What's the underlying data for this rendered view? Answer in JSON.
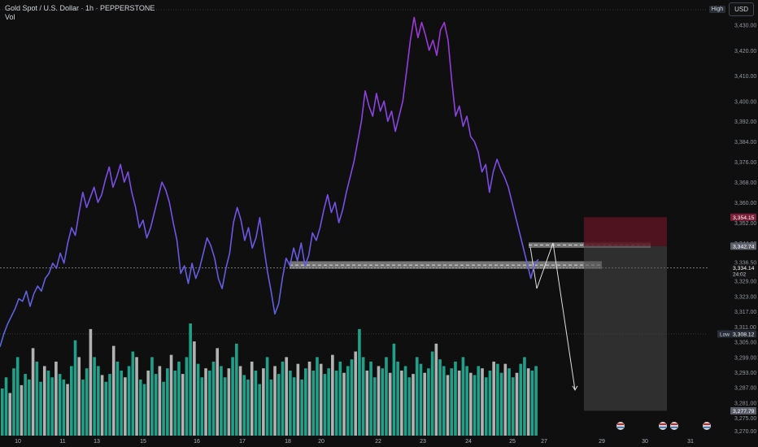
{
  "header": {
    "symbol_line": "Gold Spot / U.S. Dollar · 1h · PEPPERSTONE",
    "indicator": "Vol",
    "high_badge": "High",
    "currency_button": "USD",
    "low_badge": "Low"
  },
  "chart_data": {
    "type": "line",
    "title": "Gold Spot / U.S. Dollar · 1h · PEPPERSTONE",
    "xlabel": "",
    "ylabel": "",
    "ylim": [
      3268,
      3436
    ],
    "y_ticks": [
      3270.0,
      3275.0,
      3281.0,
      3287.0,
      3293.0,
      3299.0,
      3305.0,
      3311.0,
      3317.0,
      3323.0,
      3329.0,
      3336.5,
      3344.0,
      3352.0,
      3360.0,
      3368.0,
      3376.0,
      3384.0,
      3392.0,
      3400.0,
      3410.0,
      3420.0,
      3430.0
    ],
    "x_ticks": [
      "10",
      "11",
      "13",
      "15",
      "16",
      "17",
      "18",
      "20",
      "22",
      "23",
      "24",
      "25",
      "27",
      "29",
      "30",
      "31"
    ],
    "price_labels": [
      {
        "label": "3,354.15",
        "value": 3354.15,
        "color": "#7b1f3a"
      },
      {
        "label": "3,342.74",
        "value": 3342.74,
        "color": "#5d606b"
      },
      {
        "label": "3,334.14",
        "sub": "24:02",
        "value": 3334.14,
        "color": "#131313"
      },
      {
        "label": "3,308.12",
        "value": 3308.12,
        "color": "#2a2e39"
      },
      {
        "label": "3,277.79",
        "value": 3277.79,
        "color": "#5d606b"
      }
    ],
    "series": [
      {
        "values": [
          3303,
          3308,
          3312,
          3315,
          3318,
          3322,
          3321,
          3325,
          3319,
          3324,
          3327,
          3325,
          3330,
          3332,
          3336,
          3334,
          3340,
          3336,
          3344,
          3350,
          3347,
          3356,
          3364,
          3358,
          3362,
          3366,
          3360,
          3363,
          3369,
          3374,
          3366,
          3370,
          3375,
          3368,
          3372,
          3364,
          3358,
          3350,
          3353,
          3346,
          3350,
          3356,
          3362,
          3368,
          3365,
          3360,
          3352,
          3345,
          3332,
          3335,
          3328,
          3336,
          3330,
          3334,
          3340,
          3346,
          3343,
          3338,
          3330,
          3326,
          3334,
          3340,
          3352,
          3358,
          3353,
          3345,
          3350,
          3342,
          3346,
          3354,
          3343,
          3333,
          3325,
          3316,
          3320,
          3330,
          3338,
          3335,
          3342,
          3337,
          3344,
          3335,
          3339,
          3348,
          3345,
          3350,
          3357,
          3363,
          3356,
          3360,
          3352,
          3357,
          3364,
          3370,
          3376,
          3384,
          3392,
          3404,
          3398,
          3394,
          3403,
          3396,
          3400,
          3392,
          3396,
          3388,
          3394,
          3400,
          3412,
          3424,
          3433,
          3425,
          3431,
          3426,
          3420,
          3424,
          3418,
          3428,
          3431,
          3424,
          3408,
          3394,
          3398,
          3390,
          3394,
          3386,
          3384,
          3380,
          3372,
          3375,
          3364,
          3372,
          3377,
          3373,
          3370,
          3366,
          3360,
          3354,
          3348,
          3342,
          3336,
          3330,
          3336,
          3337.5
        ]
      }
    ],
    "volume": [
      42,
      52,
      38,
      60,
      70,
      45,
      55,
      50,
      78,
      66,
      48,
      62,
      58,
      52,
      66,
      55,
      50,
      46,
      62,
      85,
      70,
      50,
      60,
      95,
      70,
      62,
      54,
      48,
      55,
      80,
      66,
      58,
      52,
      62,
      75,
      70,
      50,
      46,
      58,
      70,
      55,
      62,
      48,
      60,
      72,
      58,
      66,
      55,
      70,
      100,
      84,
      64,
      52,
      60,
      58,
      66,
      78,
      62,
      52,
      60,
      70,
      82,
      62,
      54,
      50,
      66,
      58,
      46,
      60,
      70,
      50,
      62,
      55,
      66,
      70,
      58,
      52,
      64,
      50,
      60,
      66,
      58,
      70,
      64,
      55,
      60,
      72,
      58,
      66,
      56,
      62,
      68,
      75,
      95,
      70,
      58,
      66,
      52,
      62,
      60,
      70,
      56,
      82,
      66,
      58,
      62,
      52,
      55,
      70,
      64,
      56,
      60,
      75,
      82,
      68,
      62,
      54,
      60,
      66,
      58,
      70,
      62,
      56,
      54,
      62,
      60,
      52,
      58,
      66,
      64,
      56,
      64,
      60,
      52,
      56,
      64,
      70,
      60,
      58,
      62
    ],
    "volume_colors": [
      "#22ab94",
      "#c0c0c0"
    ],
    "annotations": [
      {
        "type": "zone",
        "from": 3333.8,
        "to": 3336.8
      },
      {
        "type": "zone",
        "from": 3342.1,
        "to": 3344.2
      },
      {
        "type": "position",
        "stop": 3354.15,
        "entry": 3342.74,
        "target": 3277.79
      },
      {
        "type": "path",
        "points": [
          3342.5,
          3326,
          3344,
          3286
        ]
      }
    ]
  }
}
